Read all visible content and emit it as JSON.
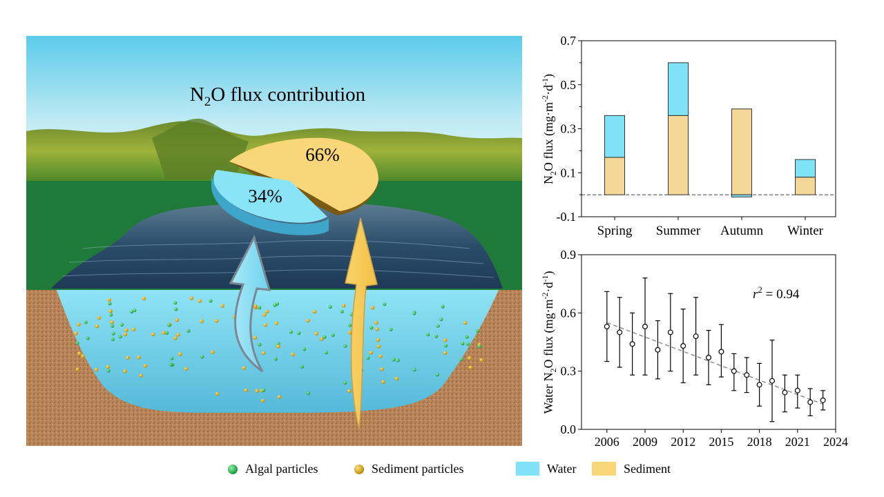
{
  "illustration": {
    "title_main": "N",
    "title_sub": "2",
    "title_rest": "O flux contribution",
    "pie": {
      "water_pct": 34,
      "sediment_pct": 66,
      "water_label": "34%",
      "sediment_label": "66%"
    }
  },
  "colors": {
    "water": "#7fe2f7",
    "sediment": "#f9d67a",
    "sediment_bar": "#f3d796",
    "algal": "#20b24d",
    "sediment_particle": "#d8a200",
    "hills": "#1f7a3a",
    "soil": "#b5855a"
  },
  "legend": {
    "algal_label": "Algal particles",
    "sediment_particles_label": "Sediment particles",
    "water_label": "Water",
    "sediment_label": "Sediment"
  },
  "chart_data": [
    {
      "type": "bar",
      "stacked": true,
      "categories": [
        "Spring",
        "Summer",
        "Autumn",
        "Winter"
      ],
      "series": [
        {
          "name": "Sediment",
          "values": [
            0.17,
            0.36,
            0.39,
            0.08
          ]
        },
        {
          "name": "Water",
          "values": [
            0.19,
            0.24,
            -0.01,
            0.08
          ]
        }
      ],
      "ylim": [
        -0.1,
        0.7
      ],
      "yticks": [
        "-0.1",
        "0.1",
        "0.3",
        "0.5",
        "0.7"
      ],
      "ylabel_pre": "N",
      "ylabel_sub": "2",
      "ylabel_mid": "O flux (mg·m",
      "ylabel_sup1": "-2",
      "ylabel_mid2": "·d",
      "ylabel_sup2": "-1",
      "ylabel_post": ")",
      "reference_line": 0
    },
    {
      "type": "scatter",
      "x": [
        2006,
        2007,
        2008,
        2009,
        2010,
        2011,
        2012,
        2013,
        2014,
        2015,
        2016,
        2017,
        2018,
        2019,
        2020,
        2021,
        2022,
        2023
      ],
      "y": [
        0.53,
        0.5,
        0.44,
        0.53,
        0.41,
        0.5,
        0.43,
        0.48,
        0.37,
        0.4,
        0.3,
        0.28,
        0.23,
        0.25,
        0.19,
        0.2,
        0.14,
        0.15
      ],
      "error_upper": [
        0.71,
        0.68,
        0.6,
        0.78,
        0.56,
        0.7,
        0.62,
        0.68,
        0.51,
        0.54,
        0.39,
        0.37,
        0.34,
        0.46,
        0.28,
        0.28,
        0.21,
        0.2
      ],
      "error_lower": [
        0.35,
        0.32,
        0.28,
        0.28,
        0.26,
        0.3,
        0.24,
        0.28,
        0.23,
        0.27,
        0.2,
        0.19,
        0.12,
        0.04,
        0.09,
        0.11,
        0.07,
        0.1
      ],
      "trend": {
        "x0": 2006,
        "y0": 0.55,
        "x1": 2023,
        "y1": 0.13
      },
      "xlim": [
        2004,
        2024
      ],
      "xticks": [
        "2006",
        "2009",
        "2012",
        "2015",
        "2018",
        "2021",
        "2024"
      ],
      "ylim": [
        0.0,
        0.9
      ],
      "yticks": [
        "0.0",
        "0.3",
        "0.6",
        "0.9"
      ],
      "ylabel_pre": "Water N",
      "ylabel_sub": "2",
      "ylabel_mid": "O flux (mg·m",
      "ylabel_sup1": "-2",
      "ylabel_mid2": "·d",
      "ylabel_sup2": "-1",
      "ylabel_post": ")",
      "annotation_r": "r",
      "annotation_sup": "2",
      "annotation_value": " = 0.94"
    }
  ]
}
